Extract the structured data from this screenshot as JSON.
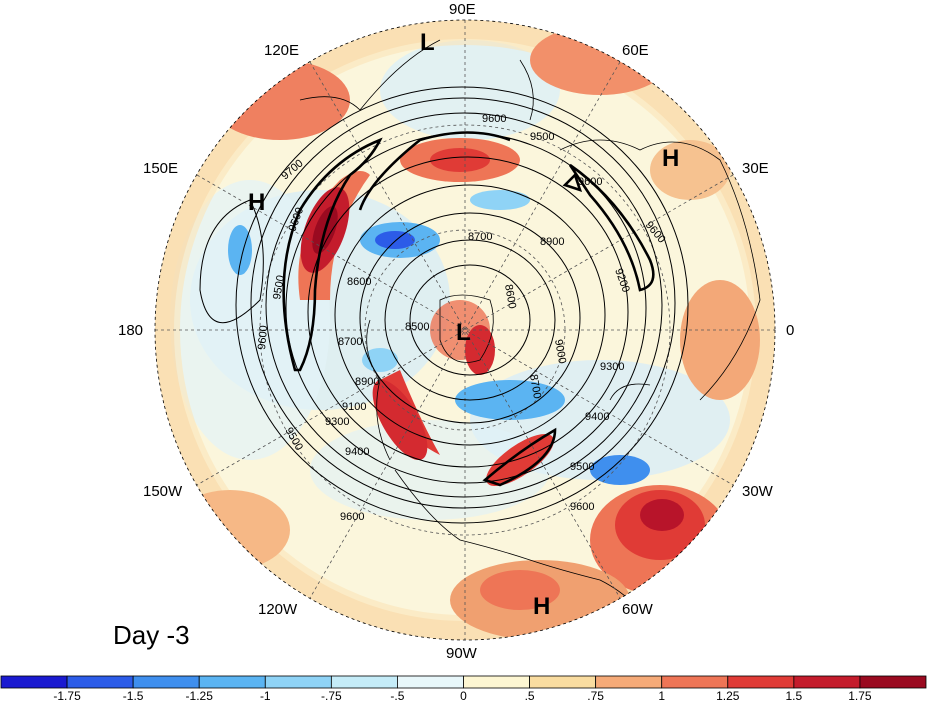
{
  "map": {
    "projection": "polar stereographic, north pole",
    "day_label": "Day -3",
    "longitude_labels": [
      "90E",
      "60E",
      "30E",
      "0",
      "30W",
      "60W",
      "90W",
      "120W",
      "150W",
      "180",
      "150E",
      "120E"
    ],
    "pressure_centers": [
      {
        "type": "L",
        "where": "north pole"
      },
      {
        "type": "L",
        "where": "top near 90E"
      },
      {
        "type": "H",
        "where": "near 150E"
      },
      {
        "type": "H",
        "where": "near 30E"
      },
      {
        "type": "H",
        "where": "near 60W"
      }
    ],
    "contour_labels": [
      "9700",
      "9600",
      "9500",
      "9400",
      "9300",
      "9100",
      "8900",
      "8700",
      "8600",
      "8500",
      "9600",
      "9500",
      "9400",
      "9300",
      "9200",
      "9000",
      "8700"
    ],
    "colors": {
      "ocean_background": "#fbf6dc",
      "negative_anomaly": "#4a90e0",
      "positive_anomaly": "#e04030"
    }
  },
  "colorbar": {
    "ticks": [
      "-1.75",
      "-1.5",
      "-1.25",
      "-1",
      "-.75",
      "-.5",
      "0",
      ".5",
      ".75",
      "1",
      "1.25",
      "1.5",
      "1.75"
    ],
    "colors": [
      "#1a1ad0",
      "#2c5ce8",
      "#3f8fee",
      "#5bb4f2",
      "#8fd3f6",
      "#c5ecf8",
      "#e8f7fa",
      "#fdf6d2",
      "#f9dca0",
      "#f5aa78",
      "#ee7556",
      "#e03b36",
      "#c41c2c",
      "#9a0a20"
    ]
  }
}
